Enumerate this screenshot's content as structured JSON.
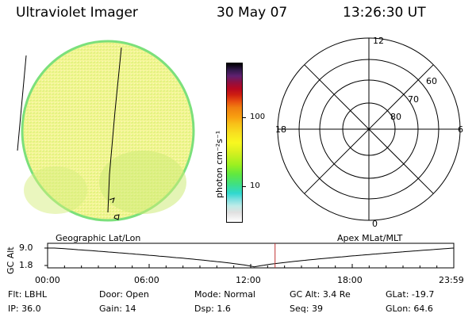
{
  "header": {
    "title": "Ultraviolet Imager",
    "date": "30 May 07",
    "time": "13:26:30 UT"
  },
  "colorbar": {
    "unit": "photon cm⁻²s⁻¹",
    "ticks": [
      "100",
      "10"
    ]
  },
  "polar": {
    "clock_labels": [
      "12",
      "18",
      "6",
      "0"
    ],
    "lat_labels": [
      "60",
      "70",
      "80"
    ]
  },
  "timeline": {
    "left_title": "Geographic Lat/Lon",
    "right_title": "Apex MLat/MLT",
    "y_axis_label": "GC Alt",
    "y_ticks": [
      "9.0",
      "1.8"
    ],
    "x_ticks": [
      "00:00",
      "06:00",
      "12:00",
      "18:00",
      "23:59"
    ],
    "current_time_fraction": 0.56,
    "colors": {
      "marker": "#c03030",
      "orbit": "#000000"
    }
  },
  "status": {
    "row1": [
      {
        "label": "Flt:",
        "value": "LBHL"
      },
      {
        "label": "Door:",
        "value": "Open"
      },
      {
        "label": "Mode:",
        "value": "Normal"
      },
      {
        "label": "GC Alt:",
        "value": "3.4 Re"
      },
      {
        "label": "GLat:",
        "value": "-19.7"
      }
    ],
    "row2": [
      {
        "label": "IP:",
        "value": "36.0"
      },
      {
        "label": "Gain:",
        "value": "14"
      },
      {
        "label": "Dsp:",
        "value": "1.6"
      },
      {
        "label": "Seq:",
        "value": "39"
      },
      {
        "label": "GLon:",
        "value": "64.6"
      }
    ]
  },
  "colors": {
    "disk_fill": "#f4f490",
    "disk_edge": "#7be07b",
    "disk_green": "#d6f07a"
  }
}
